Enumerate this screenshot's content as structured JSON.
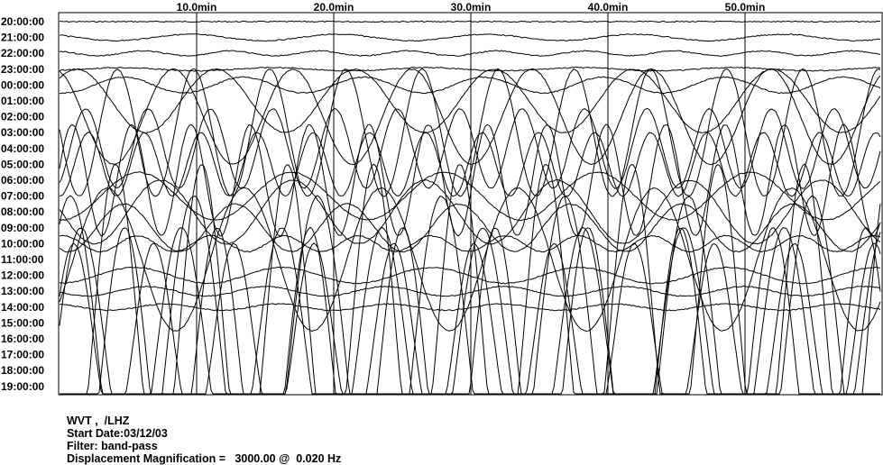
{
  "chart_data": {
    "type": "line",
    "title": "",
    "x_label_unit": "min",
    "x_ticks": [
      "10.0min",
      "20.0min",
      "30.0min",
      "40.0min",
      "50.0min"
    ],
    "x_tick_values": [
      10,
      20,
      30,
      40,
      50
    ],
    "x_range": [
      -4.5,
      60
    ],
    "row_labels": [
      "20:00:00",
      "21:00:00",
      "22:00:00",
      "23:00:00",
      "00:00:00",
      "01:00:00",
      "02:00:00",
      "03:00:00",
      "04:00:00",
      "05:00:00",
      "06:00:00",
      "07:00:00",
      "08:00:00",
      "09:00:00",
      "10:00:00",
      "11:00:00",
      "12:00:00",
      "13:00:00",
      "14:00:00",
      "15:00:00",
      "16:00:00",
      "17:00:00",
      "18:00:00",
      "19:00:00"
    ],
    "grid": true,
    "traces_description": "Each row is a one-hour seismogram trace starting at the labeled hour; offset in minutes is on the x-axis.",
    "series": [
      {
        "row": "20:00:00",
        "amplitude_rows": 0.0
      },
      {
        "row": "21:00:00",
        "amplitude_rows": 0.2
      },
      {
        "row": "22:00:00",
        "amplitude_rows": 0.15
      },
      {
        "row": "23:00:00",
        "amplitude_rows": 0.1
      },
      {
        "row": "00:00:00",
        "amplitude_rows": 0.5
      },
      {
        "row": "01:00:00",
        "amplitude_rows": 2.0
      },
      {
        "row": "02:00:00",
        "amplitude_rows": 3.0
      },
      {
        "row": "03:00:00",
        "amplitude_rows": 4.0
      },
      {
        "row": "04:00:00",
        "amplitude_rows": 2.5
      },
      {
        "row": "05:00:00",
        "amplitude_rows": 2.0
      },
      {
        "row": "06:00:00",
        "amplitude_rows": 3.5
      },
      {
        "row": "07:00:00",
        "amplitude_rows": 1.5
      },
      {
        "row": "08:00:00",
        "amplitude_rows": 2.0
      },
      {
        "row": "09:00:00",
        "amplitude_rows": 1.5
      },
      {
        "row": "10:00:00",
        "amplitude_rows": 0.5
      },
      {
        "row": "11:00:00",
        "amplitude_rows": 4.5
      },
      {
        "row": "12:00:00",
        "amplitude_rows": 0.5
      },
      {
        "row": "13:00:00",
        "amplitude_rows": 0.3
      },
      {
        "row": "14:00:00",
        "amplitude_rows": 0.2
      },
      {
        "row": "15:00:00",
        "amplitude_rows": 10.0
      },
      {
        "row": "16:00:00",
        "amplitude_rows": 6.0
      },
      {
        "row": "17:00:00",
        "amplitude_rows": 8.0
      },
      {
        "row": "18:00:00",
        "amplitude_rows": 9.0
      },
      {
        "row": "19:00:00",
        "amplitude_rows": 12.0
      }
    ]
  },
  "footer": {
    "station": "WVT ,  /LHZ",
    "start_date": "Start Date:03/12/03",
    "filter": "Filter: band-pass",
    "magnification": "Displacement Magnification =   3000.00 @  0.020 Hz"
  }
}
